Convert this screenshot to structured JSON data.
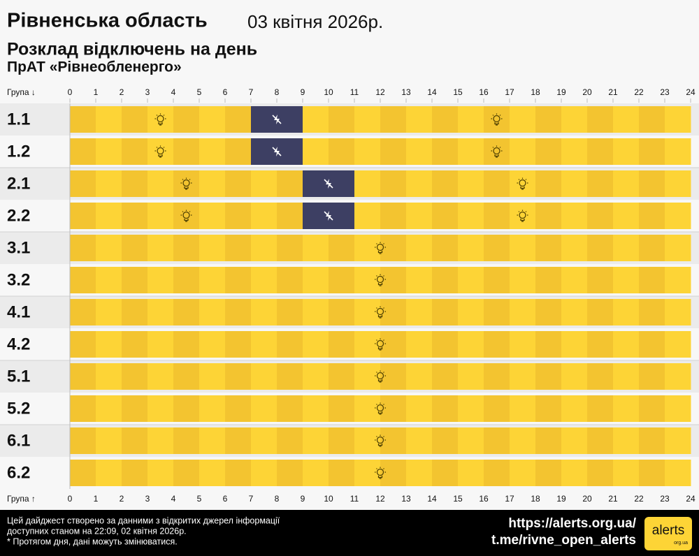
{
  "chart_data": {
    "type": "timeline",
    "title": "Рівненська область",
    "date": "03 квітня 2026р.",
    "subtitle": "Розклад відключень на день",
    "company": "ПрАТ «Рівнеобленерго»",
    "ylabel_top": "Група ↓",
    "ylabel_bottom": "Група ↑",
    "categories": [
      "1.1",
      "1.2",
      "2.1",
      "2.2",
      "3.1",
      "3.2",
      "4.1",
      "4.2",
      "5.1",
      "5.2",
      "6.1",
      "6.2"
    ],
    "outages": [
      [
        [
          7,
          9
        ]
      ],
      [
        [
          7,
          9
        ]
      ],
      [
        [
          9,
          11
        ]
      ],
      [
        [
          9,
          11
        ]
      ],
      [],
      [],
      [],
      [],
      [],
      [],
      [],
      []
    ],
    "xlim": [
      0,
      24
    ],
    "xticks": [
      0,
      1,
      2,
      3,
      4,
      5,
      6,
      7,
      8,
      9,
      10,
      11,
      12,
      13,
      14,
      15,
      16,
      17,
      18,
      19,
      20,
      21,
      22,
      23,
      24
    ],
    "on_color": "#fdd436",
    "on_stripe_color": "#f3c430",
    "off_color": "#3d3f63"
  },
  "footer": {
    "lines": [
      "Цей дайджест створено за данними з відкритих джерел інформації",
      "доступних станом на 22:09, 02 квітня 2026р.",
      "* Протягом дня, дані можуть змінюватися."
    ],
    "links": [
      "https://alerts.org.ua/",
      "t.me/rivne_open_alerts"
    ],
    "logo": "alerts",
    "logo_sub": "org.ua"
  }
}
